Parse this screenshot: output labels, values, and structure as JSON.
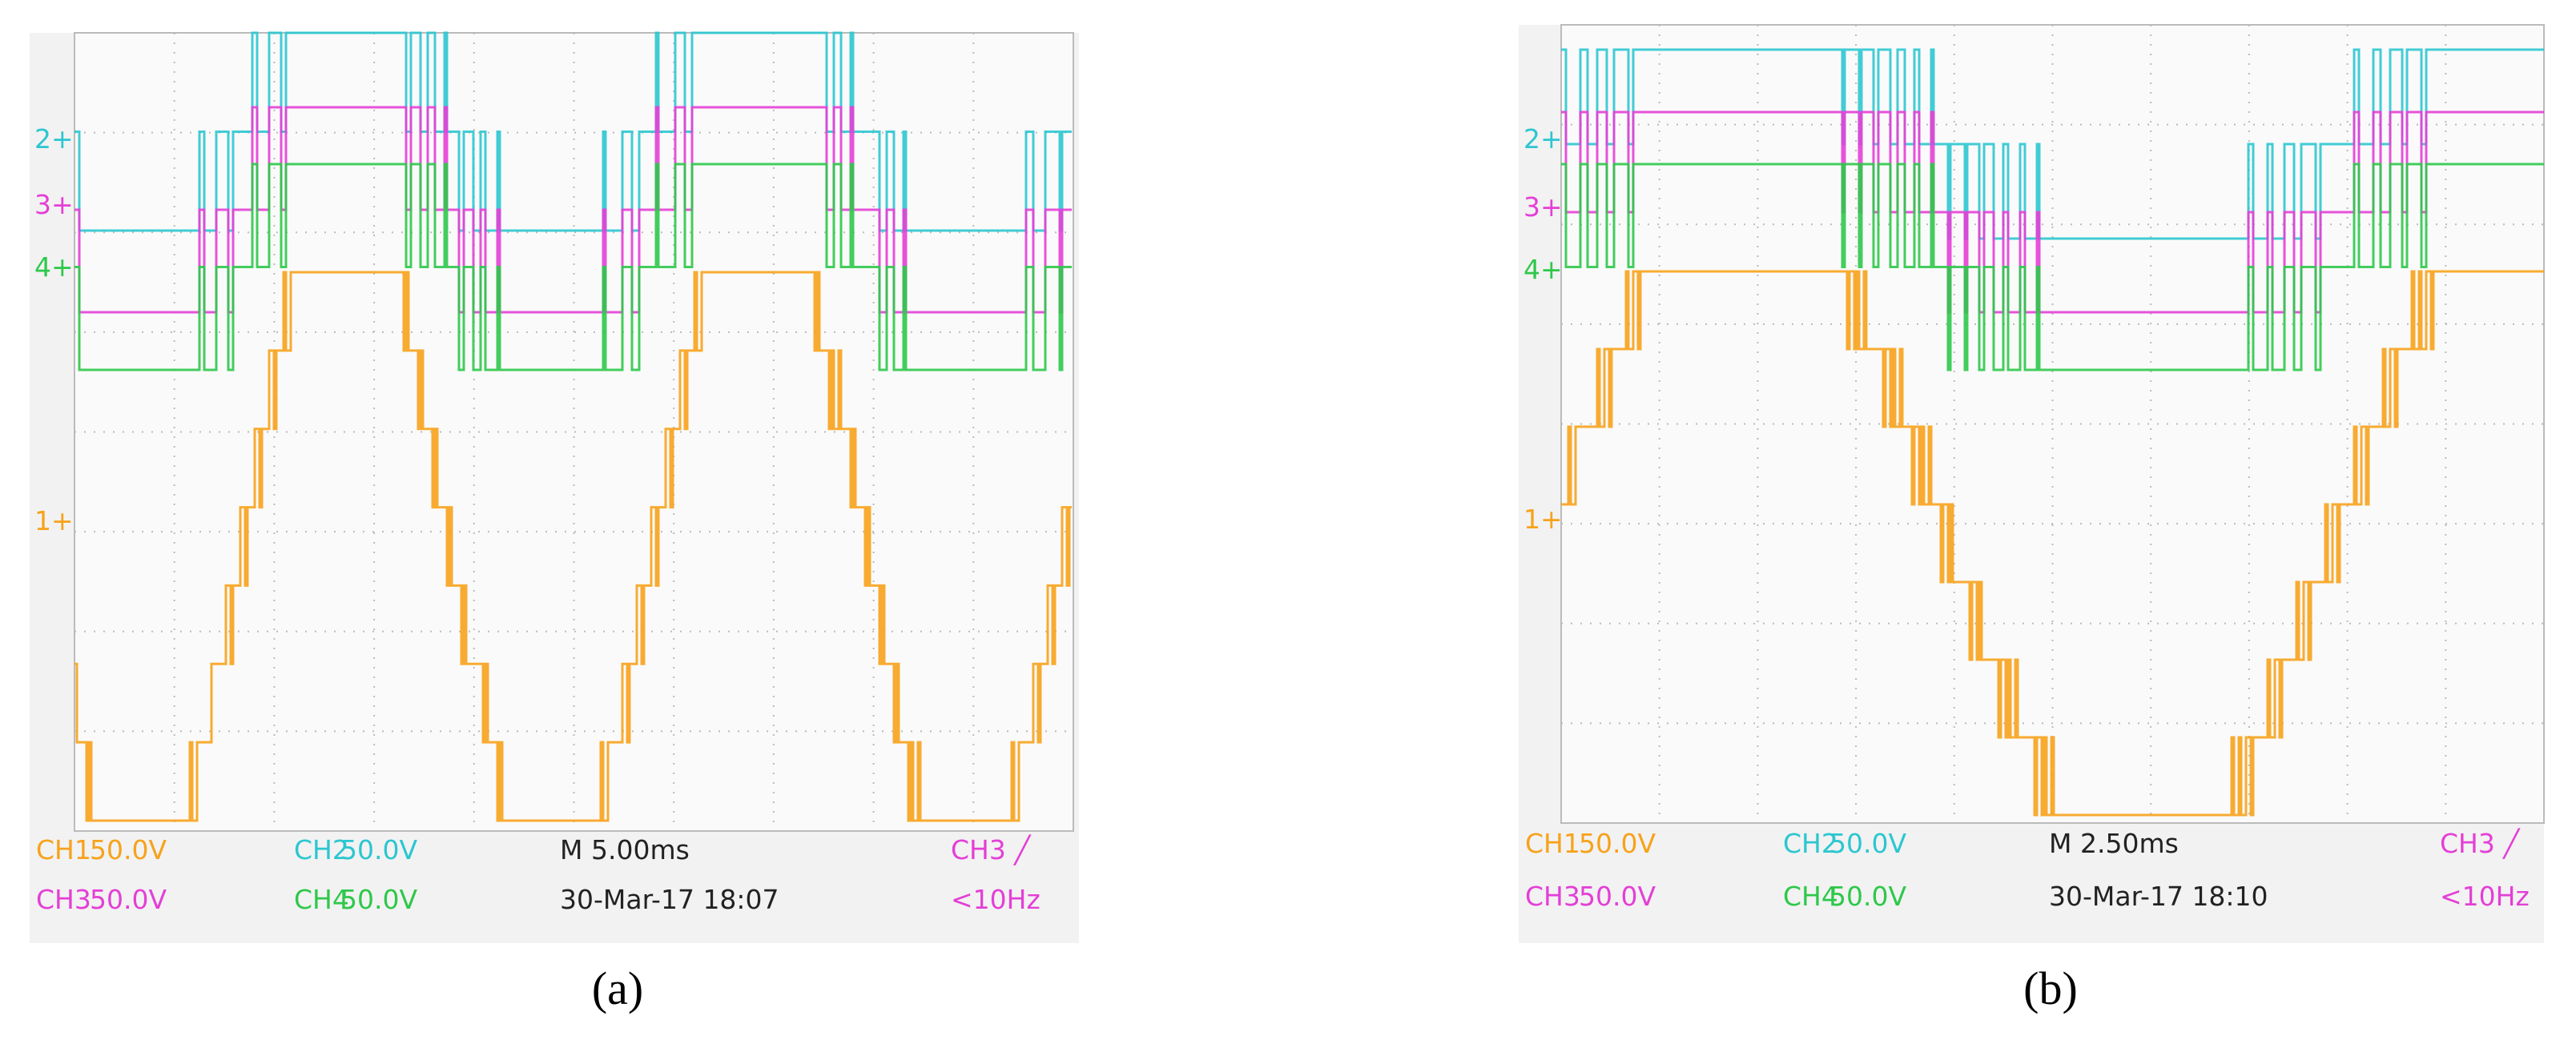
{
  "panels": [
    {
      "caption": "(a)",
      "markers": [
        "2+",
        "3+",
        "4+",
        "1+"
      ],
      "readout": [
        [
          "CH1",
          "50.0V",
          "CH2",
          "50.0V",
          "M 5.00ms",
          "CH3 ╱"
        ],
        [
          "CH3",
          "50.0V",
          "CH4",
          "50.0V",
          "30-Mar-17 18:07",
          "<10Hz"
        ]
      ]
    },
    {
      "caption": "(b)",
      "markers": [
        "2+",
        "3+",
        "4+",
        "1+"
      ],
      "readout": [
        [
          "CH1",
          "50.0V",
          "CH2",
          "50.0V",
          "M 2.50ms",
          "CH3 ╱"
        ],
        [
          "CH3",
          "50.0V",
          "CH4",
          "50.0V",
          "30-Mar-17 18:10",
          "<10Hz"
        ]
      ]
    }
  ]
}
